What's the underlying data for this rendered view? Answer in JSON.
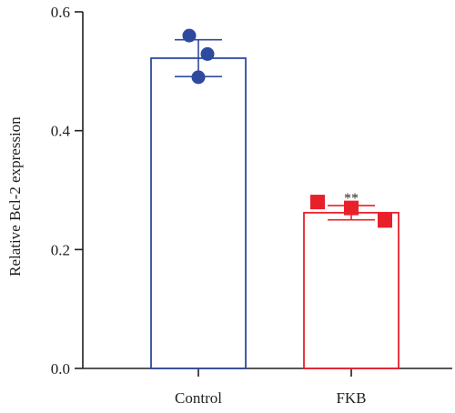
{
  "chart_data": {
    "type": "bar",
    "categories": [
      "Control",
      "FKB"
    ],
    "values": [
      0.522,
      0.262
    ],
    "errors": [
      0.031,
      0.012
    ],
    "points": [
      [
        0.56,
        0.529,
        0.49
      ],
      [
        0.28,
        0.27,
        0.249
      ]
    ],
    "point_shapes": [
      "circle",
      "square"
    ],
    "colors": [
      "#2e4a9e",
      "#e8202a"
    ],
    "annotations": [
      "",
      "**"
    ],
    "ylabel": "Relative Bcl-2 expression",
    "ylim": [
      0,
      0.6
    ],
    "yticks": [
      "0.0",
      "0.2",
      "0.4",
      "0.6"
    ],
    "grid": false
  }
}
